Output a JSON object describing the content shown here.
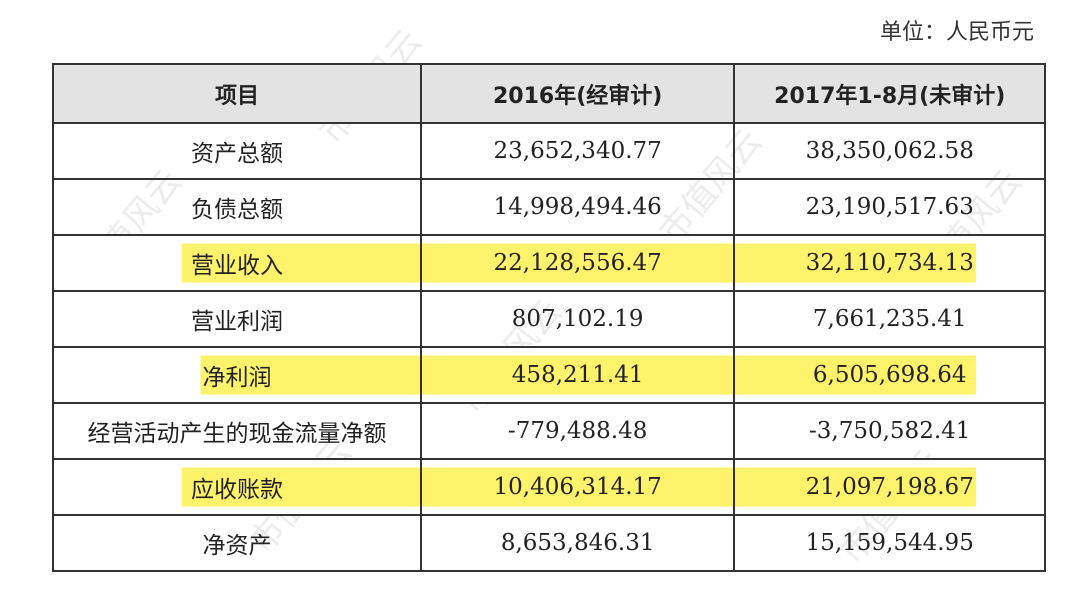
{
  "unit_label": "单位：人民币元",
  "watermark": "市值风云",
  "table": {
    "headers": [
      "项目",
      "2016年(经审计)",
      "2017年1-8月(未审计)"
    ],
    "rows": [
      {
        "item": "资产总额",
        "y2016": "23,652,340.77",
        "y2017": "38,350,062.58",
        "highlighted": false
      },
      {
        "item": "负债总额",
        "y2016": "14,998,494.46",
        "y2017": "23,190,517.63",
        "highlighted": false
      },
      {
        "item": "营业收入",
        "y2016": "22,128,556.47",
        "y2017": "32,110,734.13",
        "highlighted": true
      },
      {
        "item": "营业利润",
        "y2016": "807,102.19",
        "y2017": "7,661,235.41",
        "highlighted": false
      },
      {
        "item": "净利润",
        "y2016": "458,211.41",
        "y2017": "6,505,698.64",
        "highlighted": true
      },
      {
        "item": "经营活动产生的现金流量净额",
        "y2016": "-779,488.48",
        "y2017": "-3,750,582.41",
        "highlighted": false
      },
      {
        "item": "应收账款",
        "y2016": "10,406,314.17",
        "y2017": "21,097,198.67",
        "highlighted": true
      },
      {
        "item": "净资产",
        "y2016": "8,653,846.31",
        "y2017": "15,159,544.95",
        "highlighted": false
      }
    ]
  },
  "colors": {
    "highlight": "#fff36b",
    "header_bg": "#e3e3e3"
  }
}
